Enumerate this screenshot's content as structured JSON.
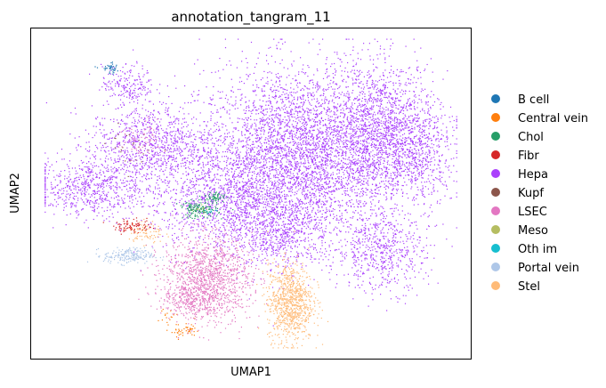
{
  "chart_data": {
    "type": "scatter",
    "title": "annotation_tangram_11",
    "xlabel": "UMAP1",
    "ylabel": "UMAP2",
    "grid": false,
    "legend_placement": "right",
    "xlim": [
      0,
      100
    ],
    "ylim": [
      0,
      100
    ],
    "series": [
      {
        "name": "B cell",
        "color": "#1f77b4",
        "clusters": [
          {
            "cx": 18,
            "cy": 88,
            "sx": 1.2,
            "sy": 0.8,
            "n": 40
          }
        ]
      },
      {
        "name": "Central vein",
        "color": "#ff7f0e",
        "clusters": [
          {
            "cx": 35,
            "cy": 8,
            "sx": 1.8,
            "sy": 1.2,
            "n": 50
          },
          {
            "cx": 31,
            "cy": 13,
            "sx": 1.0,
            "sy": 1.0,
            "n": 15
          }
        ]
      },
      {
        "name": "Chol",
        "color": "#279e68",
        "clusters": [
          {
            "cx": 38,
            "cy": 45,
            "sx": 2.2,
            "sy": 1.3,
            "n": 150
          },
          {
            "cx": 42,
            "cy": 49,
            "sx": 1.2,
            "sy": 0.8,
            "n": 60
          }
        ]
      },
      {
        "name": "Fibr",
        "color": "#d62728",
        "clusters": [
          {
            "cx": 23,
            "cy": 40,
            "sx": 2.2,
            "sy": 1.0,
            "n": 90
          }
        ]
      },
      {
        "name": "Hepa",
        "color": "#aa40fc",
        "clusters": [
          {
            "cx": 62,
            "cy": 62,
            "sx": 12,
            "sy": 13,
            "n": 4200
          },
          {
            "cx": 80,
            "cy": 70,
            "sx": 6,
            "sy": 10,
            "n": 1200
          },
          {
            "cx": 88,
            "cy": 63,
            "sx": 4,
            "sy": 8,
            "n": 500
          },
          {
            "cx": 14,
            "cy": 52,
            "sx": 7,
            "sy": 4.5,
            "n": 700
          },
          {
            "cx": 27,
            "cy": 65,
            "sx": 7,
            "sy": 6,
            "n": 900
          },
          {
            "cx": 22,
            "cy": 83,
            "sx": 3,
            "sy": 3,
            "n": 200
          },
          {
            "cx": 45,
            "cy": 48,
            "sx": 9,
            "sy": 8,
            "n": 1200
          },
          {
            "cx": 80,
            "cy": 32,
            "sx": 5,
            "sy": 6,
            "n": 550
          },
          {
            "cx": 57,
            "cy": 38,
            "sx": 6,
            "sy": 5,
            "n": 550
          }
        ]
      },
      {
        "name": "Kupf",
        "color": "#8c564b",
        "clusters": [
          {
            "cx": 23,
            "cy": 64,
            "sx": 3,
            "sy": 3,
            "n": 25
          }
        ]
      },
      {
        "name": "LSEC",
        "color": "#e377c2",
        "clusters": [
          {
            "cx": 40,
            "cy": 24,
            "sx": 5,
            "sy": 6.5,
            "n": 1300
          },
          {
            "cx": 36,
            "cy": 17,
            "sx": 3,
            "sy": 2,
            "n": 150
          },
          {
            "cx": 25,
            "cy": 66,
            "sx": 2.5,
            "sy": 3,
            "n": 60
          }
        ]
      },
      {
        "name": "Meso",
        "color": "#b5bd61",
        "clusters": [
          {
            "cx": 39,
            "cy": 45,
            "sx": 1.0,
            "sy": 0.8,
            "n": 10
          }
        ]
      },
      {
        "name": "Oth im",
        "color": "#17becf",
        "clusters": [
          {
            "cx": 40,
            "cy": 44,
            "sx": 1.0,
            "sy": 0.8,
            "n": 10
          }
        ]
      },
      {
        "name": "Portal vein",
        "color": "#aec7e8",
        "clusters": [
          {
            "cx": 22,
            "cy": 31,
            "sx": 2.8,
            "sy": 1.2,
            "n": 200
          }
        ]
      },
      {
        "name": "Stel",
        "color": "#ffbb78",
        "clusters": [
          {
            "cx": 59,
            "cy": 17,
            "sx": 2.6,
            "sy": 6,
            "n": 900
          },
          {
            "cx": 26,
            "cy": 38,
            "sx": 2.0,
            "sy": 2.0,
            "n": 80
          }
        ]
      }
    ]
  }
}
